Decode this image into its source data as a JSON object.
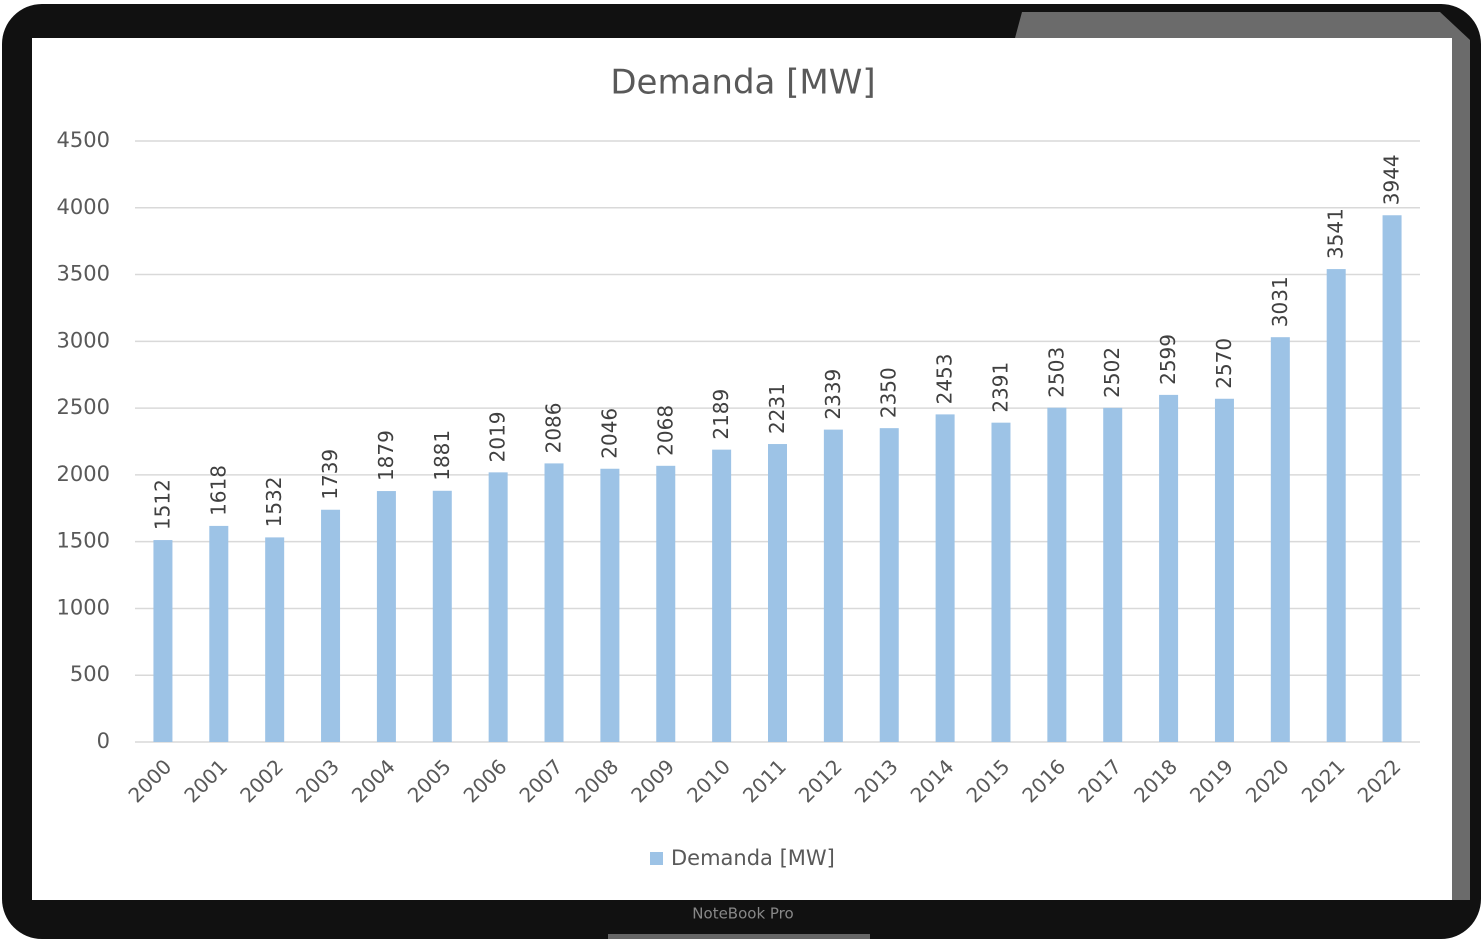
{
  "chart_data": {
    "type": "bar",
    "title": "Demanda [MW]",
    "categories": [
      "2000",
      "2001",
      "2002",
      "2003",
      "2004",
      "2005",
      "2006",
      "2007",
      "2008",
      "2009",
      "2010",
      "2011",
      "2012",
      "2013",
      "2014",
      "2015",
      "2016",
      "2017",
      "2018",
      "2019",
      "2020",
      "2021",
      "2022"
    ],
    "series": [
      {
        "name": "Demanda [MW]",
        "color": "#9dc3e6",
        "values": [
          1512,
          1618,
          1532,
          1739,
          1879,
          1881,
          2019,
          2086,
          2046,
          2068,
          2189,
          2231,
          2339,
          2350,
          2453,
          2391,
          2503,
          2502,
          2599,
          2570,
          3031,
          3541,
          3944
        ]
      }
    ],
    "ylim": [
      0,
      4500
    ],
    "yticks": [
      0,
      500,
      1000,
      1500,
      2000,
      2500,
      3000,
      3500,
      4000,
      4500
    ],
    "grid": true,
    "legend": "bottom",
    "data_labels": true
  },
  "device": {
    "label": "NoteBook Pro"
  }
}
